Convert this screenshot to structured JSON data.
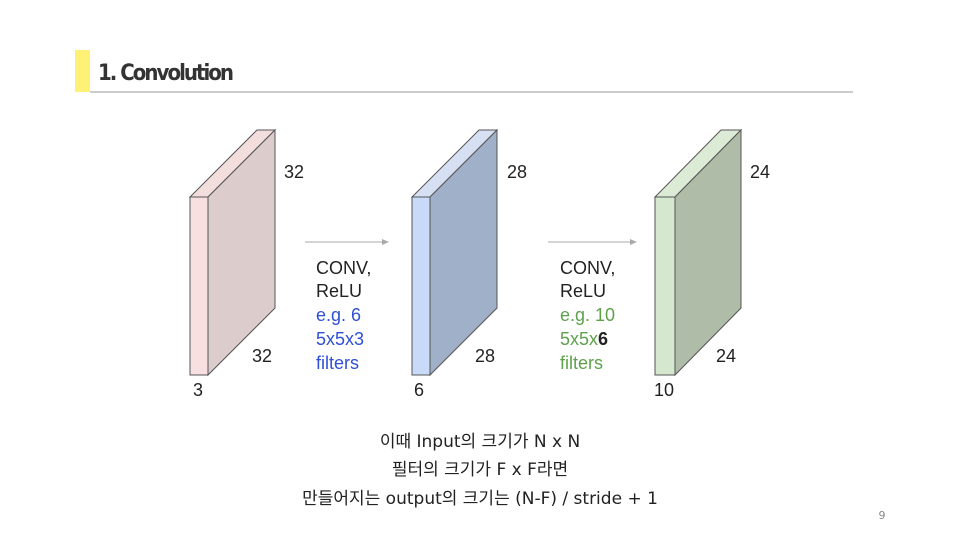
{
  "header": {
    "title": "1. Convolution"
  },
  "figure": {
    "volumes": [
      {
        "height": "32",
        "width": "32",
        "depth": "3"
      },
      {
        "height": "28",
        "width": "28",
        "depth": "6"
      },
      {
        "height": "24",
        "width": "24",
        "depth": "10"
      }
    ],
    "steps": [
      {
        "op": [
          "CONV,",
          "ReLU"
        ],
        "example": "e.g. 6",
        "size": {
          "text": "5x5x3",
          "bold": ""
        },
        "unit": "filters"
      },
      {
        "op": [
          "CONV,",
          "ReLU"
        ],
        "example": "e.g. 10",
        "size": {
          "text": "5x5x",
          "bold": "6"
        },
        "unit": "filters"
      }
    ]
  },
  "caption": [
    "이때 Input의 크기가 N x N",
    "필터의 크기가 F x F라면",
    "만들어지는 output의 크기는 (N-F) / stride + 1"
  ],
  "page_number": "9"
}
